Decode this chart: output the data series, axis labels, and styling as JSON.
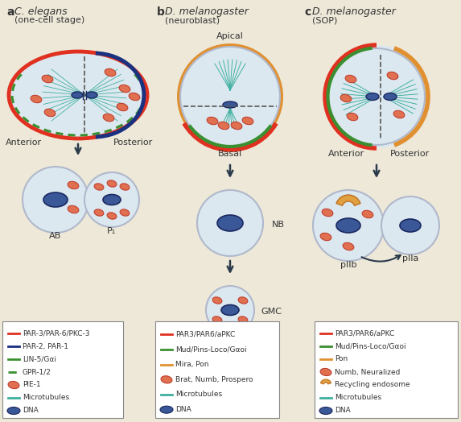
{
  "bg_color": "#ede8d8",
  "title_a": "C. elegans",
  "subtitle_a": "(one-cell stage)",
  "title_b": "D. melanogaster",
  "subtitle_b": "(neuroblast)",
  "title_c": "D. melanogaster",
  "subtitle_c": "(SOP)",
  "cell_fill": "#dce8f0",
  "cell_edge": "#b0b8cc",
  "dna_fill": "#3a5898",
  "dna_edge": "#1a2860",
  "granule_fill": "#e07050",
  "granule_edge": "#c04030",
  "mt_color": "#40b0a0",
  "red_par": "#e03020",
  "blue_par": "#1a3080",
  "green_par": "#3a9030",
  "orange_par": "#e09030",
  "crescent_fill": "#e0a040",
  "crescent_edge": "#c07020",
  "legend_a": [
    {
      "type": "line",
      "color": "#e03020",
      "label": "PAR-3/PAR-6/PKC-3",
      "style": "solid"
    },
    {
      "type": "line",
      "color": "#1a3080",
      "label": "PAR-2, PAR-1",
      "style": "solid"
    },
    {
      "type": "line",
      "color": "#3a9030",
      "label": "LIN-5/Gαi",
      "style": "solid"
    },
    {
      "type": "line",
      "color": "#3a9030",
      "label": "GPR-1/2",
      "style": "dashed"
    },
    {
      "type": "oval",
      "facecolor": "#e07050",
      "edgecolor": "#c04030",
      "label": "PIE-1"
    },
    {
      "type": "line",
      "color": "#40b0a0",
      "label": "Microtubules",
      "style": "solid"
    },
    {
      "type": "oval_dna",
      "facecolor": "#3a5898",
      "edgecolor": "#1a2860",
      "label": "DNA"
    }
  ],
  "legend_b": [
    {
      "type": "line",
      "color": "#e03020",
      "label": "PAR3/PAR6/aPKC",
      "style": "solid"
    },
    {
      "type": "line",
      "color": "#3a9030",
      "label": "Mud/Pins-Loco/Gαoi",
      "style": "solid"
    },
    {
      "type": "line",
      "color": "#e09030",
      "label": "Mira, Pon",
      "style": "solid"
    },
    {
      "type": "oval",
      "facecolor": "#e07050",
      "edgecolor": "#c04030",
      "label": "Brat, Numb, Prospero"
    },
    {
      "type": "line",
      "color": "#40b0a0",
      "label": "Microtubules",
      "style": "solid"
    },
    {
      "type": "oval_dna",
      "facecolor": "#3a5898",
      "edgecolor": "#1a2860",
      "label": "DNA"
    }
  ],
  "legend_c": [
    {
      "type": "line",
      "color": "#e03020",
      "label": "PAR3/PAR6/aPKC",
      "style": "solid"
    },
    {
      "type": "line",
      "color": "#3a9030",
      "label": "Mud/Pins-Loco/Gαoi",
      "style": "solid"
    },
    {
      "type": "line",
      "color": "#e09030",
      "label": "Pon",
      "style": "solid"
    },
    {
      "type": "oval",
      "facecolor": "#e07050",
      "edgecolor": "#c04030",
      "label": "Numb, Neuralized"
    },
    {
      "type": "crescent",
      "facecolor": "#e0a040",
      "edgecolor": "#c07020",
      "label": "Recycling endosome"
    },
    {
      "type": "line",
      "color": "#40b0a0",
      "label": "Microtubules",
      "style": "solid"
    },
    {
      "type": "oval_dna",
      "facecolor": "#3a5898",
      "edgecolor": "#1a2860",
      "label": "DNA"
    }
  ]
}
